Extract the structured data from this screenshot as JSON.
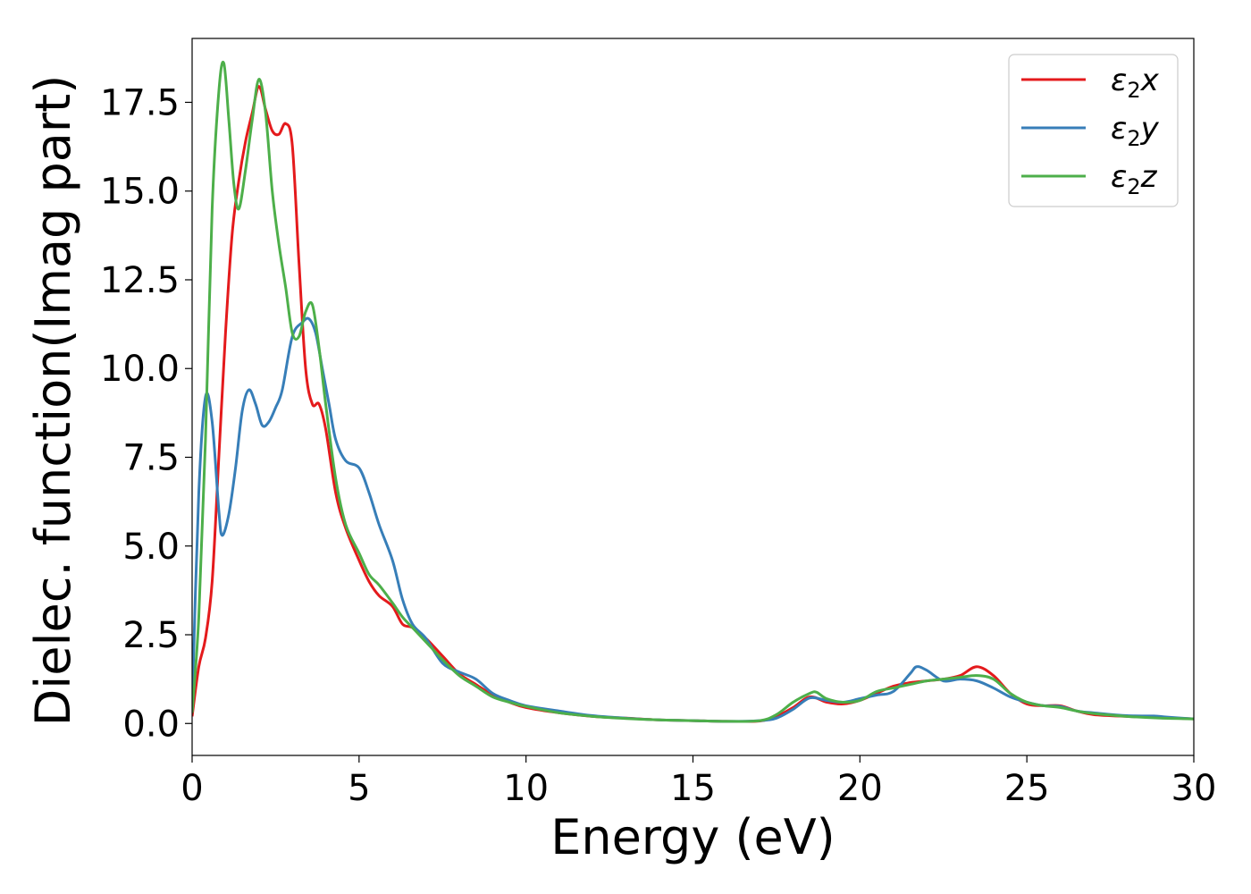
{
  "chart_data": {
    "type": "line",
    "title": "",
    "xlabel": "Energy (eV)",
    "ylabel": "Dielec. function(Imag part)",
    "xlim": [
      0,
      30
    ],
    "ylim": [
      -0.9,
      19.3
    ],
    "xticks": [
      0,
      5,
      10,
      15,
      20,
      25,
      30
    ],
    "xtick_labels": [
      "0",
      "5",
      "10",
      "15",
      "20",
      "25",
      "30"
    ],
    "yticks": [
      0,
      2.5,
      5,
      7.5,
      10,
      12.5,
      15,
      17.5
    ],
    "ytick_labels": [
      "0.0",
      "2.5",
      "5.0",
      "7.5",
      "10.0",
      "12.5",
      "15.0",
      "17.5"
    ],
    "grid": false,
    "legend_position": "top-right",
    "series": [
      {
        "name": "ε₂x",
        "label_base": "ε",
        "label_sub": "2",
        "label_var": "x",
        "color": "#e41a1c",
        "x": [
          0,
          0.2,
          0.4,
          0.6,
          0.8,
          1.0,
          1.2,
          1.4,
          1.6,
          1.8,
          2.0,
          2.2,
          2.4,
          2.6,
          2.8,
          3.0,
          3.2,
          3.4,
          3.6,
          3.8,
          4.0,
          4.3,
          4.6,
          5.0,
          5.3,
          5.6,
          6.0,
          6.3,
          6.6,
          7.0,
          7.5,
          8.0,
          8.5,
          9.0,
          9.5,
          10,
          11,
          12,
          13,
          14,
          15,
          16,
          17,
          17.5,
          18,
          18.5,
          19,
          19.5,
          20,
          20.5,
          21,
          21.5,
          22,
          22.5,
          23,
          23.5,
          24,
          24.5,
          25,
          25.5,
          26,
          26.5,
          27,
          28,
          29,
          30
        ],
        "y": [
          0.2,
          1.6,
          2.4,
          4.0,
          7.5,
          11.0,
          13.8,
          15.3,
          16.4,
          17.2,
          17.95,
          17.3,
          16.7,
          16.6,
          16.9,
          16.3,
          13.0,
          10.0,
          9.0,
          9.0,
          8.3,
          6.5,
          5.5,
          4.6,
          4.0,
          3.6,
          3.3,
          2.8,
          2.7,
          2.4,
          1.9,
          1.4,
          1.1,
          0.8,
          0.6,
          0.45,
          0.3,
          0.2,
          0.15,
          0.1,
          0.08,
          0.06,
          0.07,
          0.2,
          0.45,
          0.75,
          0.6,
          0.55,
          0.65,
          0.85,
          1.05,
          1.15,
          1.2,
          1.25,
          1.35,
          1.6,
          1.35,
          0.85,
          0.55,
          0.5,
          0.5,
          0.35,
          0.25,
          0.2,
          0.17,
          0.13
        ]
      },
      {
        "name": "ε₂y",
        "label_base": "ε",
        "label_sub": "2",
        "label_var": "y",
        "color": "#377eb8",
        "x": [
          0,
          0.2,
          0.4,
          0.6,
          0.8,
          0.9,
          1.1,
          1.3,
          1.5,
          1.7,
          1.9,
          2.1,
          2.3,
          2.5,
          2.7,
          3.0,
          3.3,
          3.5,
          3.7,
          3.9,
          4.1,
          4.3,
          4.6,
          5.0,
          5.3,
          5.6,
          6.0,
          6.3,
          6.6,
          7.0,
          7.5,
          8.0,
          8.5,
          9.0,
          9.5,
          10,
          11,
          12,
          13,
          14,
          15,
          16,
          17,
          17.5,
          18,
          18.5,
          19,
          19.5,
          20,
          20.5,
          21,
          21.5,
          21.7,
          22,
          22.5,
          23,
          23.5,
          24,
          24.5,
          25,
          25.5,
          26,
          26.5,
          27,
          28,
          28.8,
          29.2,
          30
        ],
        "y": [
          0.5,
          6.5,
          9.2,
          8.5,
          6.0,
          5.3,
          5.9,
          7.2,
          8.8,
          9.4,
          9.0,
          8.4,
          8.5,
          8.9,
          9.4,
          10.9,
          11.3,
          11.4,
          11.0,
          10.0,
          9.0,
          8.0,
          7.4,
          7.2,
          6.5,
          5.6,
          4.6,
          3.5,
          2.8,
          2.4,
          1.7,
          1.45,
          1.25,
          0.85,
          0.65,
          0.5,
          0.35,
          0.22,
          0.15,
          0.1,
          0.08,
          0.06,
          0.08,
          0.15,
          0.4,
          0.72,
          0.65,
          0.6,
          0.7,
          0.8,
          0.9,
          1.4,
          1.6,
          1.5,
          1.2,
          1.25,
          1.2,
          1.0,
          0.75,
          0.6,
          0.5,
          0.48,
          0.35,
          0.3,
          0.22,
          0.21,
          0.18,
          0.13
        ]
      },
      {
        "name": "ε₂z",
        "label_base": "ε",
        "label_sub": "2",
        "label_var": "z",
        "color": "#4daf4a",
        "x": [
          0,
          0.2,
          0.4,
          0.6,
          0.8,
          0.95,
          1.1,
          1.25,
          1.4,
          1.6,
          1.8,
          2.0,
          2.2,
          2.4,
          2.6,
          2.8,
          3.0,
          3.2,
          3.4,
          3.6,
          3.8,
          4.0,
          4.3,
          4.6,
          5.0,
          5.3,
          5.6,
          6.0,
          6.3,
          6.6,
          7.0,
          7.5,
          8.0,
          8.5,
          9.0,
          9.5,
          10,
          11,
          12,
          13,
          14,
          15,
          16,
          17,
          17.5,
          18,
          18.5,
          18.7,
          19,
          19.5,
          20,
          20.5,
          21,
          21.5,
          22,
          22.5,
          23,
          23.5,
          24,
          24.5,
          25,
          25.5,
          26,
          26.5,
          27,
          28,
          29,
          30
        ],
        "y": [
          0.3,
          3.0,
          8.0,
          14.5,
          17.8,
          18.6,
          17.0,
          15.2,
          14.5,
          15.6,
          17.0,
          18.15,
          17.2,
          15.0,
          13.5,
          12.3,
          11.0,
          10.9,
          11.6,
          11.8,
          10.6,
          9.0,
          6.9,
          5.6,
          4.8,
          4.2,
          3.9,
          3.4,
          3.0,
          2.7,
          2.3,
          1.8,
          1.35,
          1.05,
          0.75,
          0.6,
          0.48,
          0.3,
          0.2,
          0.14,
          0.1,
          0.08,
          0.06,
          0.08,
          0.25,
          0.6,
          0.85,
          0.88,
          0.7,
          0.6,
          0.65,
          0.9,
          1.0,
          1.1,
          1.2,
          1.25,
          1.3,
          1.35,
          1.25,
          0.85,
          0.6,
          0.5,
          0.45,
          0.35,
          0.28,
          0.2,
          0.15,
          0.13
        ]
      }
    ]
  }
}
